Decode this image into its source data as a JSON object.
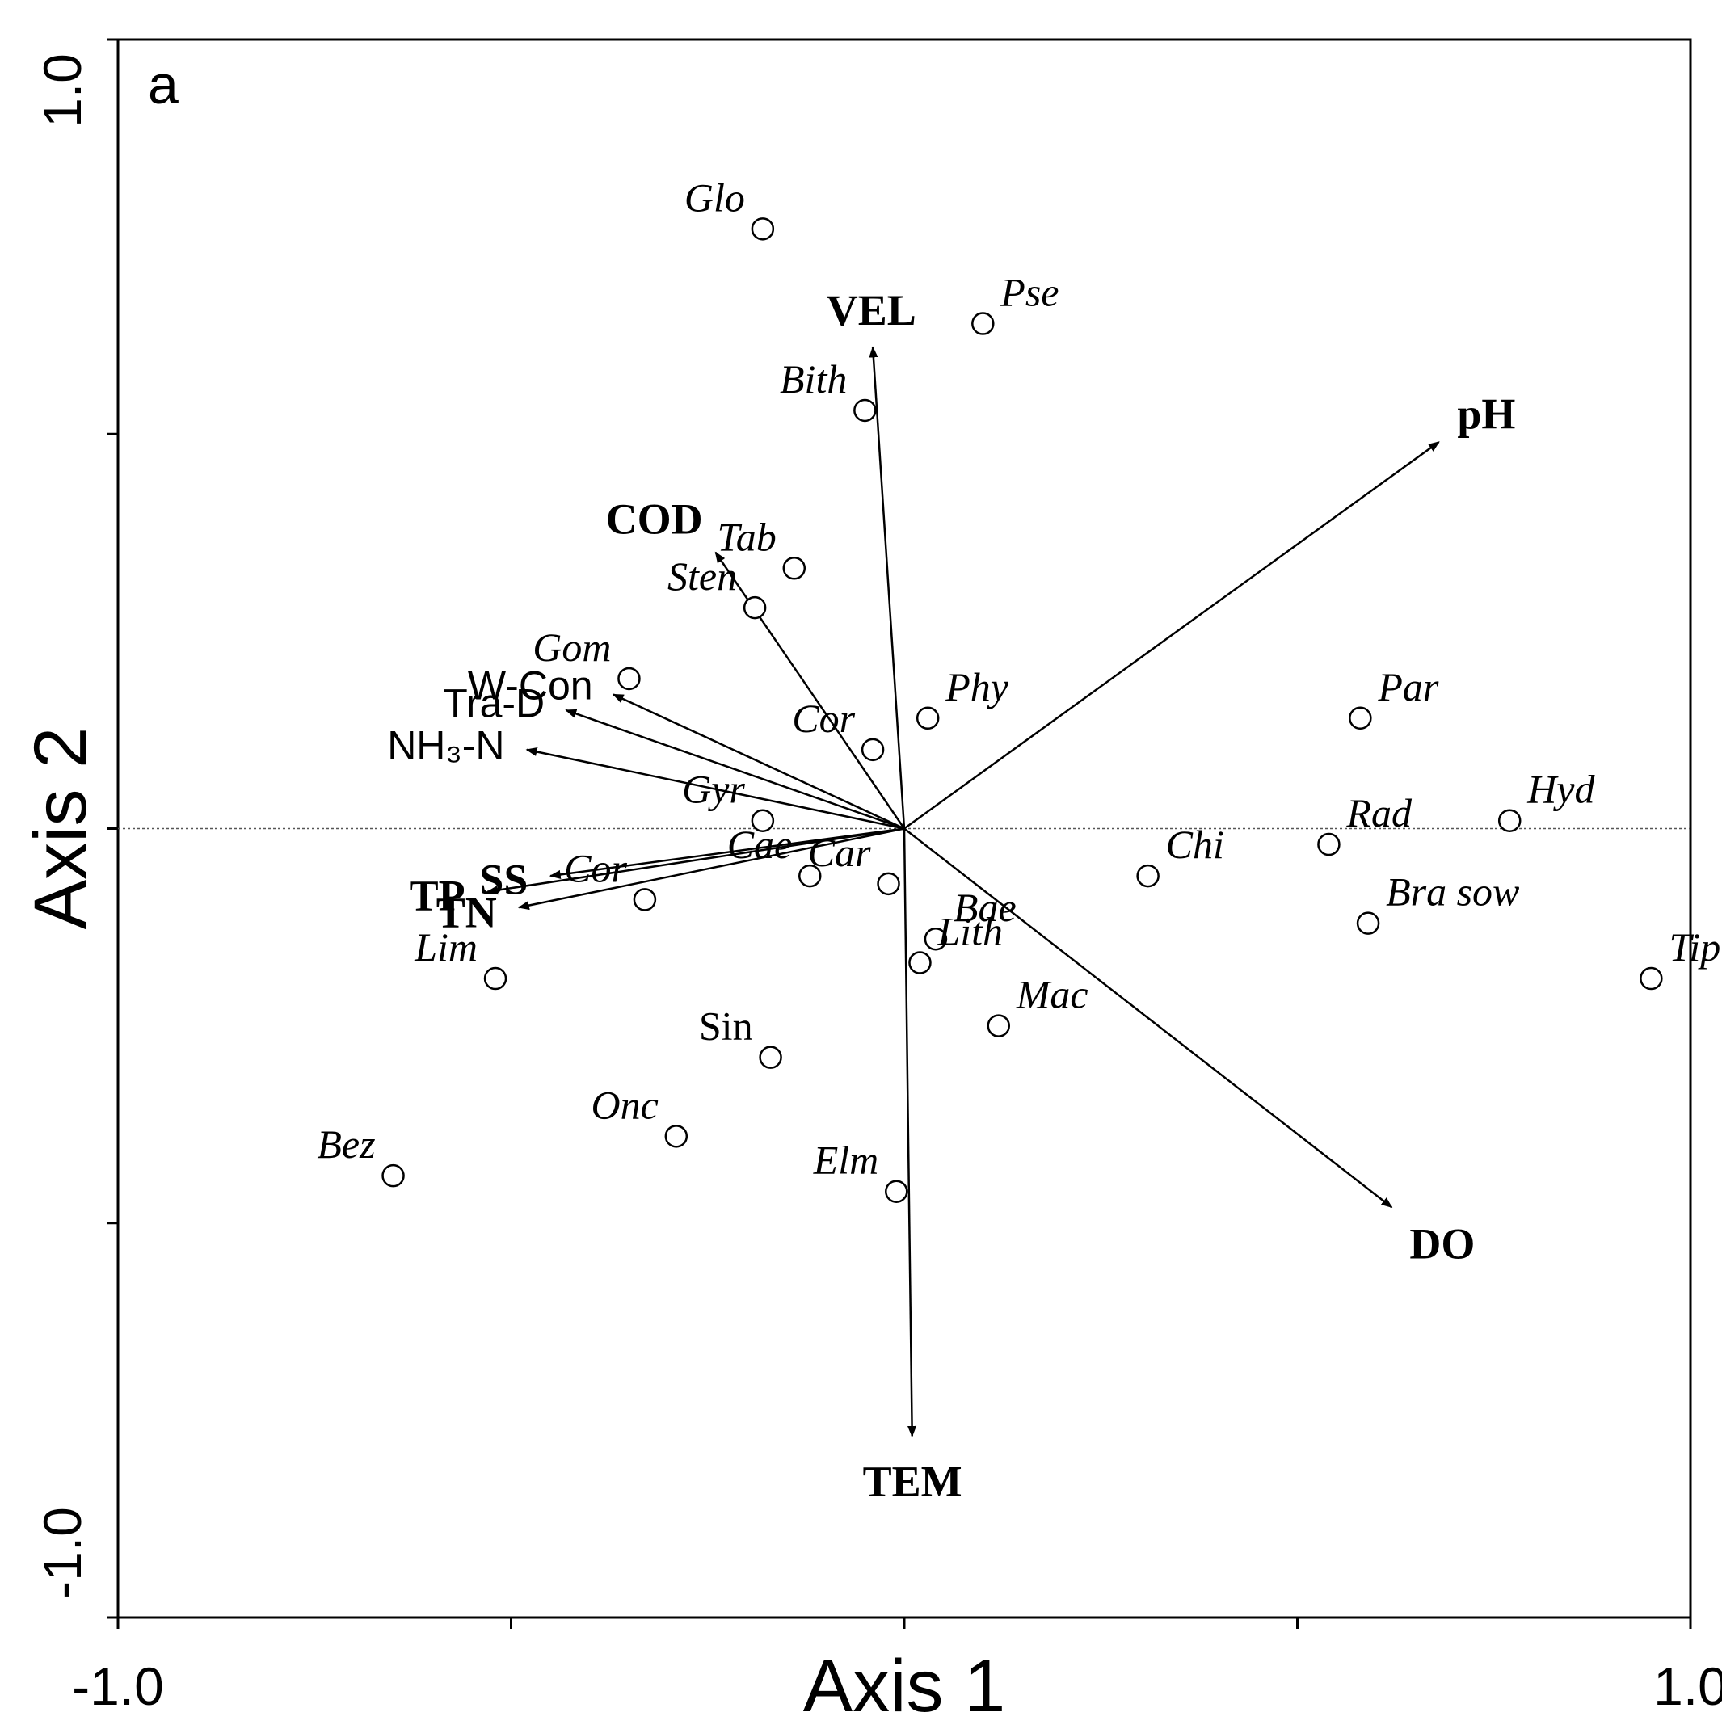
{
  "chart_data": {
    "type": "scatter",
    "subtype": "rda-biplot",
    "panel_label": "a",
    "xlabel": "Axis 1",
    "ylabel": "Axis 2",
    "xlim": [
      -1.0,
      1.0
    ],
    "ylim": [
      -1.0,
      1.0
    ],
    "x_tick_labels": [
      {
        "value": -1.0,
        "label": "-1.0"
      },
      {
        "value": 1.0,
        "label": "1.0"
      }
    ],
    "y_tick_labels": [
      {
        "value": -1.0,
        "label": "-1.0"
      },
      {
        "value": 1.0,
        "label": "1.0"
      }
    ],
    "minor_ticks": [
      -0.5,
      0.0,
      0.5
    ],
    "zero_line_y": 0.0,
    "arrow_color": "#000000",
    "environmental_vectors": [
      {
        "name": "VEL",
        "x": -0.04,
        "y": 0.61,
        "font": "serif",
        "bold": true
      },
      {
        "name": "pH",
        "x": 0.68,
        "y": 0.49,
        "font": "serif",
        "bold": true
      },
      {
        "name": "COD",
        "x": -0.24,
        "y": 0.35,
        "font": "serif",
        "bold": true
      },
      {
        "name": "W-Con",
        "x": -0.37,
        "y": 0.17,
        "font": "sans",
        "bold": false
      },
      {
        "name": "Tra-D",
        "x": -0.43,
        "y": 0.15,
        "font": "sans",
        "bold": false
      },
      {
        "name": "NH₃-N",
        "x": -0.48,
        "y": 0.1,
        "font": "sans",
        "bold": false
      },
      {
        "name": "SS",
        "x": -0.45,
        "y": -0.06,
        "font": "serif",
        "bold": true
      },
      {
        "name": "TP",
        "x": -0.53,
        "y": -0.08,
        "font": "serif",
        "bold": true
      },
      {
        "name": "TN",
        "x": -0.49,
        "y": -0.1,
        "font": "serif",
        "bold": true
      },
      {
        "name": "TEM",
        "x": 0.01,
        "y": -0.77,
        "font": "serif",
        "bold": true
      },
      {
        "name": "DO",
        "x": 0.62,
        "y": -0.48,
        "font": "serif",
        "bold": true
      }
    ],
    "species": [
      {
        "name": "Glo",
        "x": -0.18,
        "y": 0.76,
        "italic": true
      },
      {
        "name": "Pse",
        "x": 0.1,
        "y": 0.64,
        "italic": true
      },
      {
        "name": "Bith",
        "x": -0.05,
        "y": 0.53,
        "italic": true
      },
      {
        "name": "Tab",
        "x": -0.14,
        "y": 0.33,
        "italic": true
      },
      {
        "name": "Sten",
        "x": -0.19,
        "y": 0.28,
        "italic": true
      },
      {
        "name": "Gom",
        "x": -0.35,
        "y": 0.19,
        "italic": true
      },
      {
        "name": "Phy",
        "x": 0.03,
        "y": 0.14,
        "italic": true
      },
      {
        "name": "Cor",
        "x": -0.04,
        "y": 0.1,
        "italic": true
      },
      {
        "name": "Gyr",
        "x": -0.18,
        "y": 0.01,
        "italic": true
      },
      {
        "name": "Cae",
        "x": -0.12,
        "y": -0.06,
        "italic": true
      },
      {
        "name": "Car",
        "x": -0.02,
        "y": -0.07,
        "italic": true
      },
      {
        "name": "Bae",
        "x": 0.04,
        "y": -0.14,
        "italic": true
      },
      {
        "name": "Lith",
        "x": 0.02,
        "y": -0.17,
        "italic": true
      },
      {
        "name": "Mac",
        "x": 0.12,
        "y": -0.25,
        "italic": true
      },
      {
        "name": "Cor",
        "x": -0.33,
        "y": -0.09,
        "italic": true
      },
      {
        "name": "Lim",
        "x": -0.52,
        "y": -0.19,
        "italic": true
      },
      {
        "name": "Sin",
        "x": -0.17,
        "y": -0.29,
        "italic": false
      },
      {
        "name": "Onc",
        "x": -0.29,
        "y": -0.39,
        "italic": true
      },
      {
        "name": "Bez",
        "x": -0.65,
        "y": -0.44,
        "italic": true
      },
      {
        "name": "Elm",
        "x": -0.01,
        "y": -0.46,
        "italic": true
      },
      {
        "name": "Chi",
        "x": 0.31,
        "y": -0.06,
        "italic": true
      },
      {
        "name": "Par",
        "x": 0.58,
        "y": 0.14,
        "italic": true
      },
      {
        "name": "Rad",
        "x": 0.54,
        "y": -0.02,
        "italic": true
      },
      {
        "name": "Hyd",
        "x": 0.77,
        "y": 0.01,
        "italic": true
      },
      {
        "name": "Bra sow",
        "x": 0.59,
        "y": -0.12,
        "italic": true
      },
      {
        "name": "Tip",
        "x": 0.95,
        "y": -0.19,
        "italic": true
      }
    ]
  }
}
